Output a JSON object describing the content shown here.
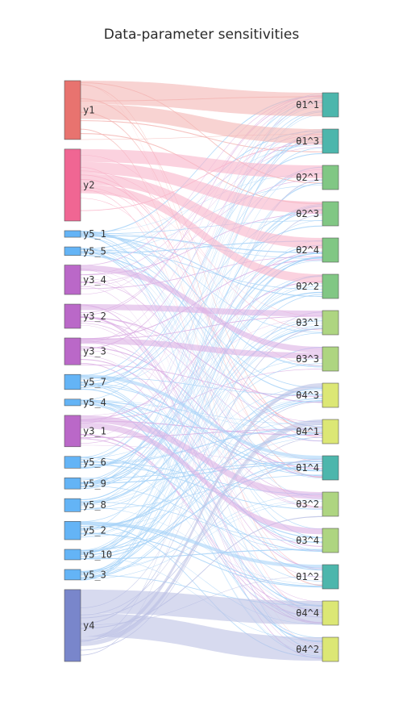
{
  "title": "Data-parameter sensitivities",
  "chart_data": {
    "type": "sankey",
    "title": "Data-parameter sensitivities",
    "source_nodes": [
      {
        "id": "y1",
        "label": "y1",
        "value": 9,
        "color": "#e8736f"
      },
      {
        "id": "y2",
        "label": "y2",
        "value": 11,
        "color": "#f06693"
      },
      {
        "id": "y5_1",
        "label": "y5_1",
        "value": 1,
        "color": "#64b4f6"
      },
      {
        "id": "y5_5",
        "label": "y5_5",
        "value": 1.3,
        "color": "#64b4f6"
      },
      {
        "id": "y3_4",
        "label": "y3_4",
        "value": 4.5,
        "color": "#ba68c8"
      },
      {
        "id": "y3_2",
        "label": "y3_2",
        "value": 3.7,
        "color": "#ba68c8"
      },
      {
        "id": "y3_3",
        "label": "y3_3",
        "value": 4.1,
        "color": "#ba68c8"
      },
      {
        "id": "y5_7",
        "label": "y5_7",
        "value": 2.3,
        "color": "#64b4f6"
      },
      {
        "id": "y5_4",
        "label": "y5_4",
        "value": 1,
        "color": "#64b4f6"
      },
      {
        "id": "y3_1",
        "label": "y3_1",
        "value": 4.8,
        "color": "#ba68c8"
      },
      {
        "id": "y5_6",
        "label": "y5_6",
        "value": 1.8,
        "color": "#64b4f6"
      },
      {
        "id": "y5_9",
        "label": "y5_9",
        "value": 1.7,
        "color": "#64b4f6"
      },
      {
        "id": "y5_8",
        "label": "y5_8",
        "value": 2,
        "color": "#64b4f6"
      },
      {
        "id": "y5_2",
        "label": "y5_2",
        "value": 2.8,
        "color": "#64b4f6"
      },
      {
        "id": "y5_10",
        "label": "y5_10",
        "value": 1.6,
        "color": "#64b4f6"
      },
      {
        "id": "y5_3",
        "label": "y5_3",
        "value": 1.6,
        "color": "#64b4f6"
      },
      {
        "id": "y4",
        "label": "y4",
        "value": 11,
        "color": "#7986cb"
      }
    ],
    "target_nodes": [
      {
        "id": "t1_1",
        "label": "θ1^1",
        "color": "#4db6ac"
      },
      {
        "id": "t1_3",
        "label": "θ1^3",
        "color": "#4db6ac"
      },
      {
        "id": "t2_1",
        "label": "θ2^1",
        "color": "#81c784"
      },
      {
        "id": "t2_3",
        "label": "θ2^3",
        "color": "#81c784"
      },
      {
        "id": "t2_4",
        "label": "θ2^4",
        "color": "#81c784"
      },
      {
        "id": "t2_2",
        "label": "θ2^2",
        "color": "#81c784"
      },
      {
        "id": "t3_1",
        "label": "θ3^1",
        "color": "#aed581"
      },
      {
        "id": "t3_3",
        "label": "θ3^3",
        "color": "#aed581"
      },
      {
        "id": "t4_3",
        "label": "θ4^3",
        "color": "#dce775"
      },
      {
        "id": "t4_1",
        "label": "θ4^1",
        "color": "#dce775"
      },
      {
        "id": "t1_4",
        "label": "θ1^4",
        "color": "#4db6ac"
      },
      {
        "id": "t3_2",
        "label": "θ3^2",
        "color": "#aed581"
      },
      {
        "id": "t3_4",
        "label": "θ3^4",
        "color": "#aed581"
      },
      {
        "id": "t1_2",
        "label": "θ1^2",
        "color": "#4db6ac"
      },
      {
        "id": "t4_4",
        "label": "θ4^4",
        "color": "#dce775"
      },
      {
        "id": "t4_2",
        "label": "θ4^2",
        "color": "#dce775"
      }
    ],
    "link_colors": {
      "y1": "#f4b6b4",
      "y2": "#f9b4c9",
      "y3": "#dcb0e4",
      "y4": "#bcc2e5",
      "y5": "#a8d4f8"
    },
    "major_links": [
      {
        "source": "y1",
        "target": "t1_1",
        "value": 4
      },
      {
        "source": "y1",
        "target": "t1_3",
        "value": 2.5
      },
      {
        "source": "y2",
        "target": "t2_1",
        "value": 2.2
      },
      {
        "source": "y2",
        "target": "t2_3",
        "value": 2
      },
      {
        "source": "y2",
        "target": "t2_4",
        "value": 1.8
      },
      {
        "source": "y2",
        "target": "t2_2",
        "value": 1.5
      },
      {
        "source": "y3_4",
        "target": "t3_3",
        "value": 1
      },
      {
        "source": "y3_2",
        "target": "t3_1",
        "value": 1
      },
      {
        "source": "y3_3",
        "target": "t3_3",
        "value": 1
      },
      {
        "source": "y3_1",
        "target": "t3_2",
        "value": 1.2
      },
      {
        "source": "y3_1",
        "target": "t3_4",
        "value": 1
      },
      {
        "source": "y4",
        "target": "t4_4",
        "value": 4
      },
      {
        "source": "y4",
        "target": "t4_2",
        "value": 4
      },
      {
        "source": "y4",
        "target": "t4_3",
        "value": 0.8
      },
      {
        "source": "y4",
        "target": "t4_1",
        "value": 0.8
      },
      {
        "source": "y5_2",
        "target": "t1_2",
        "value": 0.6
      },
      {
        "source": "y5_7",
        "target": "t1_4",
        "value": 0.6
      }
    ]
  }
}
